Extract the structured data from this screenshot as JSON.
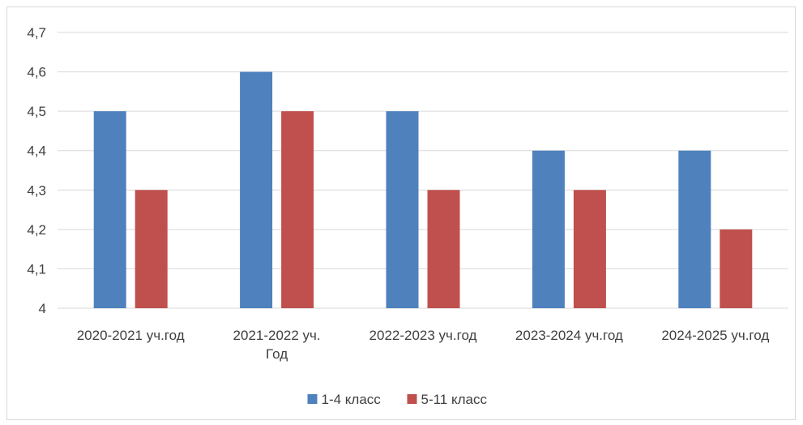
{
  "chart_data": {
    "type": "bar",
    "categories": [
      [
        "2020-2021 уч.год"
      ],
      [
        "2021-2022 уч.",
        "Год"
      ],
      [
        "2022-2023 уч.год"
      ],
      [
        "2023-2024 уч.год"
      ],
      [
        "2024-2025 уч.год"
      ]
    ],
    "series": [
      {
        "name": "1-4 класс",
        "color": "#4f81bd",
        "values": [
          4.5,
          4.6,
          4.5,
          4.4,
          4.4
        ]
      },
      {
        "name": "5-11 класс",
        "color": "#c0504d",
        "values": [
          4.3,
          4.5,
          4.3,
          4.3,
          4.2
        ]
      }
    ],
    "yticks": [
      "4",
      "4,1",
      "4,2",
      "4,3",
      "4,4",
      "4,5",
      "4,6",
      "4,7"
    ],
    "ylim": [
      4,
      4.7
    ],
    "grid": true,
    "legend_position": "bottom"
  }
}
